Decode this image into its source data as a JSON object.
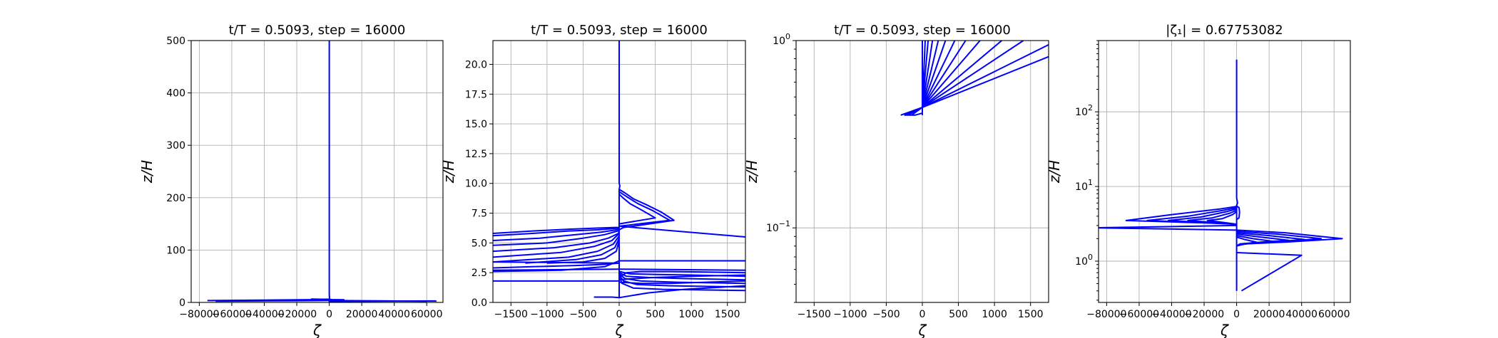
{
  "figure": {
    "line_color": "#0000ff"
  },
  "chart_data": [
    {
      "type": "line",
      "title": "t/T = 0.5093, step = 16000",
      "xlabel": "ζ",
      "ylabel": "z/H",
      "xlim": [
        -85000,
        70000
      ],
      "ylim": [
        0,
        500
      ],
      "yscale": "linear",
      "grid": true,
      "xticks": [
        -80000,
        -60000,
        -40000,
        -20000,
        0,
        20000,
        40000,
        60000
      ],
      "xtick_labels": [
        "−80000",
        "−60000",
        "−40000",
        "−20000",
        "0",
        "20000",
        "40000",
        "60000"
      ],
      "yticks": [
        0,
        100,
        200,
        300,
        400,
        500
      ],
      "ytick_labels": [
        "0",
        "100",
        "200",
        "300",
        "400",
        "500"
      ],
      "series": [
        {
          "x": [
            0,
            0,
            120,
            0,
            -11000,
            800,
            1500,
            9000,
            100,
            0,
            0
          ],
          "y": [
            500,
            15,
            9,
            6,
            6.2,
            5.9,
            5.5,
            5,
            4.5,
            3,
            0.4
          ]
        },
        {
          "x": [
            -75000,
            -40000,
            -5000,
            0,
            300
          ],
          "y": [
            3.5,
            4.5,
            5.5,
            6.2,
            7
          ]
        },
        {
          "x": [
            0,
            15000,
            40000,
            65000,
            66000
          ],
          "y": [
            1.5,
            2.2,
            2.6,
            2.8,
            2.5
          ]
        },
        {
          "x": [
            -70000,
            -20000,
            0,
            30000,
            60000
          ],
          "y": [
            2.5,
            3.2,
            3.8,
            3,
            2.2
          ]
        }
      ]
    },
    {
      "type": "line",
      "title": "t/T = 0.5093, step = 16000",
      "xlabel": "ζ",
      "ylabel": "z/H",
      "xlim": [
        -1750,
        1750
      ],
      "ylim": [
        0,
        22
      ],
      "yscale": "linear",
      "grid": true,
      "xticks": [
        -1500,
        -1000,
        -500,
        0,
        500,
        1000,
        1500
      ],
      "xtick_labels": [
        "−1500",
        "−1000",
        "−500",
        "0",
        "500",
        "1000",
        "1500"
      ],
      "yticks": [
        0,
        2.5,
        5,
        7.5,
        10,
        12.5,
        15,
        17.5,
        20
      ],
      "ytick_labels": [
        "0.0",
        "2.5",
        "5.0",
        "7.5",
        "10.0",
        "12.5",
        "15.0",
        "17.5",
        "20.0"
      ],
      "series": [
        {
          "x": [
            0,
            0,
            0,
            10,
            0,
            0
          ],
          "y": [
            22,
            14,
            10,
            9.8,
            9.5,
            0.4
          ]
        },
        {
          "x": [
            0,
            80,
            200,
            380,
            580,
            760,
            200,
            60,
            0
          ],
          "y": [
            9.5,
            9.2,
            8.7,
            8.2,
            7.6,
            6.9,
            6.4,
            6.3,
            6.1
          ]
        },
        {
          "x": [
            0,
            100,
            260,
            470,
            700,
            0
          ],
          "y": [
            9.3,
            8.9,
            8.3,
            7.7,
            6.9,
            6.4
          ]
        },
        {
          "x": [
            0,
            50,
            150,
            300,
            500,
            0
          ],
          "y": [
            9.1,
            8.8,
            8.3,
            7.8,
            7.1,
            6.6
          ]
        },
        {
          "x": [
            0,
            1750
          ],
          "y": [
            6.4,
            5.5
          ]
        },
        {
          "x": [
            -1750,
            -1200,
            -700,
            -300,
            -50,
            0
          ],
          "y": [
            5.8,
            6.0,
            6.15,
            6.25,
            6.3,
            6.3
          ]
        },
        {
          "x": [
            -1750,
            -1200,
            -700,
            -300,
            -80,
            0
          ],
          "y": [
            5.6,
            5.8,
            6.0,
            6.1,
            6.2,
            6.25
          ]
        },
        {
          "x": [
            -1750,
            -1100,
            -600,
            -250,
            -40,
            0
          ],
          "y": [
            5.2,
            5.4,
            5.7,
            5.9,
            6.1,
            6.2
          ]
        },
        {
          "x": [
            -1750,
            -1000,
            -500,
            -200,
            -20,
            0
          ],
          "y": [
            4.8,
            5.0,
            5.4,
            5.7,
            6.0,
            6.1
          ]
        },
        {
          "x": [
            -1750,
            -900,
            -400,
            -150,
            -10,
            0
          ],
          "y": [
            4.3,
            4.6,
            5.0,
            5.4,
            5.8,
            6.0
          ]
        },
        {
          "x": [
            -1750,
            -800,
            -350,
            -100,
            0
          ],
          "y": [
            3.8,
            4.2,
            4.7,
            5.2,
            5.8
          ]
        },
        {
          "x": [
            -1750,
            -700,
            -300,
            -80,
            0
          ],
          "y": [
            3.4,
            3.8,
            4.3,
            4.9,
            5.6
          ]
        },
        {
          "x": [
            -1300,
            -600,
            -250,
            -60,
            0
          ],
          "y": [
            3.3,
            3.6,
            4.0,
            4.6,
            5.4
          ]
        },
        {
          "x": [
            -1000,
            -500,
            -200,
            -40,
            0
          ],
          "y": [
            3.3,
            3.4,
            3.7,
            4.3,
            5.2
          ]
        },
        {
          "x": [
            -1750,
            -1200,
            -600,
            -200,
            0,
            -1750
          ],
          "y": [
            2.9,
            3.0,
            3.1,
            3.2,
            3.3,
            3.4
          ]
        },
        {
          "x": [
            -1750,
            0,
            1750
          ],
          "y": [
            2.7,
            2.8,
            2.7
          ]
        },
        {
          "x": [
            -1750,
            -800,
            -200,
            0,
            200,
            1750
          ],
          "y": [
            2.6,
            2.7,
            3.0,
            3.5,
            3.5,
            3.5
          ]
        },
        {
          "x": [
            -1750,
            -400,
            -100,
            0
          ],
          "y": [
            1.8,
            1.8,
            1.8,
            1.8
          ]
        },
        {
          "x": [
            0,
            150,
            500,
            1000,
            1750
          ],
          "y": [
            2.6,
            2.4,
            2.35,
            2.3,
            2.2
          ]
        },
        {
          "x": [
            0,
            100,
            400,
            900,
            1750
          ],
          "y": [
            2.5,
            2.2,
            2.1,
            2.0,
            1.9
          ]
        },
        {
          "x": [
            0,
            80,
            300,
            800,
            1750
          ],
          "y": [
            2.4,
            2.0,
            1.8,
            1.7,
            1.6
          ]
        },
        {
          "x": [
            0,
            60,
            250,
            700,
            1750
          ],
          "y": [
            2.3,
            1.8,
            1.5,
            1.4,
            1.3
          ]
        },
        {
          "x": [
            0,
            40,
            200,
            600,
            1750
          ],
          "y": [
            2.2,
            1.6,
            1.2,
            1.1,
            1.0
          ]
        },
        {
          "x": [
            0,
            100,
            300,
            700,
            1750
          ],
          "y": [
            2.1,
            2.5,
            2.6,
            2.6,
            2.5
          ]
        },
        {
          "x": [
            0,
            200,
            500,
            1000,
            1750
          ],
          "y": [
            1.9,
            2.0,
            2.1,
            2.2,
            2.3
          ]
        },
        {
          "x": [
            0,
            300,
            700,
            1200,
            1750
          ],
          "y": [
            1.7,
            1.6,
            1.6,
            1.7,
            1.8
          ]
        },
        {
          "x": [
            -350,
            -100,
            0,
            400,
            900,
            1750
          ],
          "y": [
            0.45,
            0.45,
            0.4,
            0.8,
            1.1,
            1.4
          ]
        }
      ]
    },
    {
      "type": "line",
      "title": "t/T = 0.5093, step = 16000",
      "xlabel": "ζ",
      "ylabel": "z/H",
      "xlim": [
        -1750,
        1750
      ],
      "ylim": [
        0.04,
        1.0
      ],
      "yscale": "log",
      "grid": true,
      "xticks": [
        -1500,
        -1000,
        -500,
        0,
        500,
        1000,
        1500
      ],
      "xtick_labels": [
        "−1500",
        "−1000",
        "−500",
        "0",
        "500",
        "1000",
        "1500"
      ],
      "yticks": [
        0.1,
        1.0
      ],
      "ytick_labels": [
        "10^−1",
        "10^0"
      ],
      "series": [
        {
          "x": [
            0,
            0
          ],
          "y": [
            1.0,
            0.4
          ]
        },
        {
          "x": [
            -300,
            0,
            1750
          ],
          "y": [
            0.4,
            0.44,
            0.82
          ]
        },
        {
          "x": [
            -250,
            0,
            1750
          ],
          "y": [
            0.4,
            0.44,
            0.95
          ]
        },
        {
          "x": [
            -200,
            0,
            1400
          ],
          "y": [
            0.4,
            0.44,
            1.0
          ]
        },
        {
          "x": [
            -150,
            0,
            1100
          ],
          "y": [
            0.4,
            0.44,
            1.0
          ]
        },
        {
          "x": [
            0,
            800
          ],
          "y": [
            0.44,
            1.0
          ]
        },
        {
          "x": [
            0,
            600
          ],
          "y": [
            0.44,
            1.0
          ]
        },
        {
          "x": [
            0,
            450
          ],
          "y": [
            0.44,
            1.0
          ]
        },
        {
          "x": [
            0,
            320
          ],
          "y": [
            0.44,
            1.0
          ]
        },
        {
          "x": [
            0,
            220
          ],
          "y": [
            0.44,
            1.0
          ]
        },
        {
          "x": [
            0,
            140
          ],
          "y": [
            0.44,
            1.0
          ]
        },
        {
          "x": [
            0,
            80
          ],
          "y": [
            0.44,
            1.0
          ]
        },
        {
          "x": [
            0,
            40
          ],
          "y": [
            0.44,
            1.0
          ]
        },
        {
          "x": [
            -250,
            -100,
            0
          ],
          "y": [
            0.4,
            0.4,
            0.41
          ]
        }
      ]
    },
    {
      "type": "line",
      "title": "|ζ₁| = 0.67753082",
      "xlabel": "ζ",
      "ylabel": "z/H",
      "xlim": [
        -85000,
        70000
      ],
      "ylim": [
        0.28,
        900
      ],
      "yscale": "log",
      "grid": true,
      "xticks": [
        -80000,
        -60000,
        -40000,
        -20000,
        0,
        20000,
        40000,
        60000
      ],
      "xtick_labels": [
        "−80000",
        "−60000",
        "−40000",
        "−20000",
        "0",
        "20000",
        "40000",
        "60000"
      ],
      "yticks": [
        1,
        10,
        100
      ],
      "ytick_labels": [
        "10^0",
        "10^1",
        "10^2"
      ],
      "series": [
        {
          "x": [
            0,
            0,
            600,
            0,
            0
          ],
          "y": [
            500,
            7,
            6,
            5.6,
            0.4
          ]
        },
        {
          "x": [
            0,
            1500,
            1800,
            1500,
            0
          ],
          "y": [
            5.5,
            5.2,
            4.5,
            3.8,
            3.6
          ]
        },
        {
          "x": [
            0,
            -10000,
            -40000,
            -68000,
            -30000,
            -5000,
            0
          ],
          "y": [
            5.4,
            5.0,
            4.2,
            3.5,
            3.3,
            3.2,
            3.1
          ]
        },
        {
          "x": [
            0,
            -8000,
            -30000,
            -55000,
            -25000,
            -4000,
            0
          ],
          "y": [
            5.2,
            4.8,
            4.0,
            3.5,
            3.3,
            3.15,
            3.1
          ]
        },
        {
          "x": [
            0,
            -6000,
            -22000,
            -42000,
            -20000,
            -3000,
            0
          ],
          "y": [
            5.0,
            4.6,
            3.9,
            3.5,
            3.3,
            3.15,
            3.1
          ]
        },
        {
          "x": [
            0,
            -4000,
            -15000,
            -30000,
            -14000,
            -2000,
            0
          ],
          "y": [
            4.8,
            4.4,
            3.8,
            3.5,
            3.3,
            3.15,
            3.1
          ]
        },
        {
          "x": [
            0,
            -2500,
            -9000,
            -18000,
            -8000,
            -1000,
            0
          ],
          "y": [
            4.6,
            4.2,
            3.7,
            3.5,
            3.3,
            3.15,
            3.1
          ]
        },
        {
          "x": [
            0,
            -88000,
            0
          ],
          "y": [
            3.0,
            2.8,
            2.6
          ]
        },
        {
          "x": [
            0,
            30000,
            65000,
            30000,
            5000,
            0
          ],
          "y": [
            2.6,
            2.4,
            2.0,
            1.8,
            1.7,
            1.6
          ]
        },
        {
          "x": [
            0,
            25000,
            52000,
            25000,
            4000,
            0
          ],
          "y": [
            2.5,
            2.3,
            2.0,
            1.8,
            1.7,
            1.6
          ]
        },
        {
          "x": [
            0,
            20000,
            42000,
            20000,
            3000,
            0
          ],
          "y": [
            2.4,
            2.2,
            1.95,
            1.8,
            1.7,
            1.6
          ]
        },
        {
          "x": [
            0,
            15000,
            32000,
            15000,
            2000,
            0
          ],
          "y": [
            2.3,
            2.1,
            1.9,
            1.8,
            1.7,
            1.6
          ]
        },
        {
          "x": [
            0,
            10000,
            22000,
            10000,
            1500,
            0
          ],
          "y": [
            2.2,
            2.0,
            1.85,
            1.75,
            1.65,
            1.6
          ]
        },
        {
          "x": [
            0,
            5000,
            12000,
            5000,
            800,
            0
          ],
          "y": [
            2.1,
            1.95,
            1.8,
            1.7,
            1.62,
            1.6
          ]
        },
        {
          "x": [
            0,
            40000,
            3000
          ],
          "y": [
            1.3,
            1.2,
            0.4
          ]
        }
      ]
    }
  ]
}
